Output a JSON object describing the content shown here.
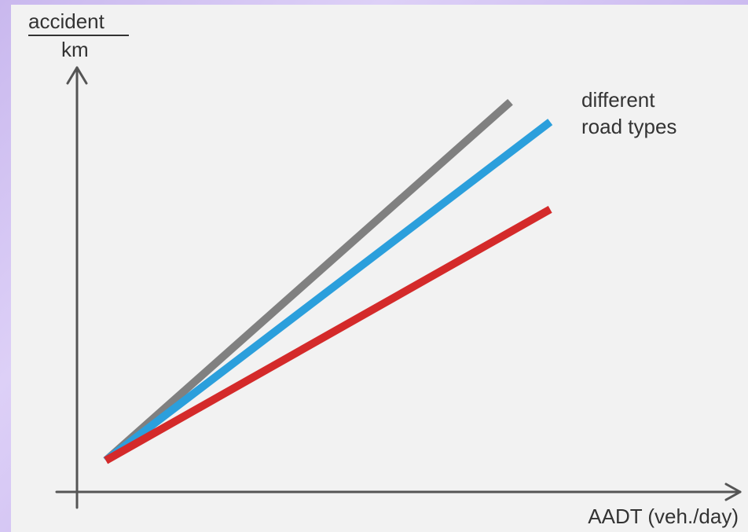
{
  "chart_data": {
    "type": "line",
    "title": "",
    "ylabel_numerator": "accident",
    "ylabel_denominator": "km",
    "xlabel": "AADT (veh./day)",
    "annotation_line1": "different",
    "annotation_line2": "road types",
    "x_ticks": [],
    "y_ticks": [],
    "grid": false,
    "xlim": [
      0,
      10
    ],
    "ylim": [
      0,
      10
    ],
    "series": [
      {
        "color": "#808080",
        "x": [
          0.47,
          7.07
        ],
        "y": [
          0.74,
          9.19
        ]
      },
      {
        "color": "#2b9fdc",
        "x": [
          0.47,
          7.72
        ],
        "y": [
          0.74,
          8.72
        ]
      },
      {
        "color": "#d42a2a",
        "x": [
          0.47,
          7.72
        ],
        "y": [
          0.74,
          6.66
        ]
      }
    ]
  }
}
